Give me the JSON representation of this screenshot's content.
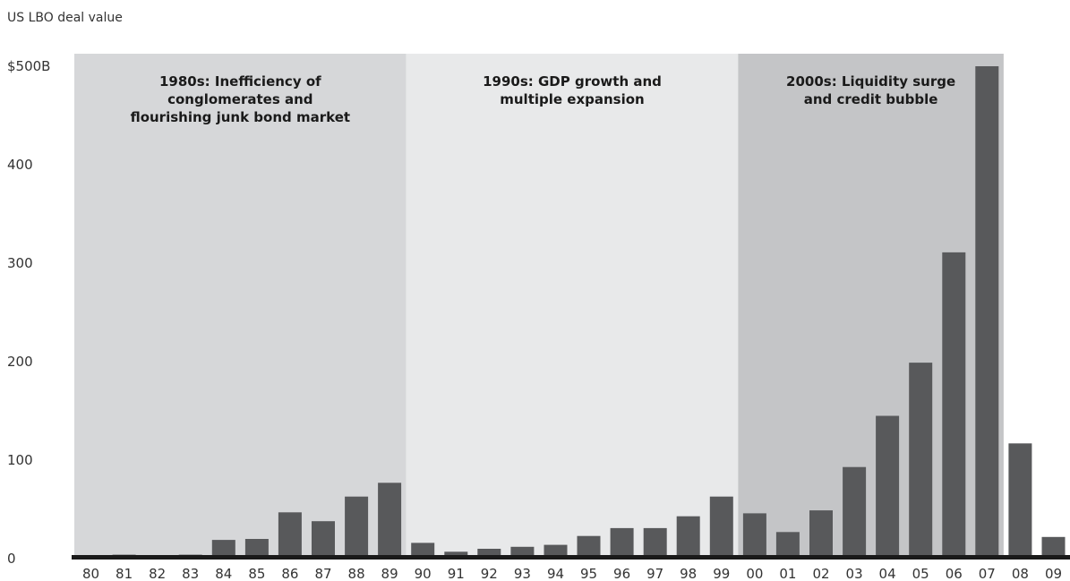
{
  "chart_data": {
    "type": "bar",
    "title": "US LBO deal value",
    "categories": [
      "80",
      "81",
      "82",
      "83",
      "84",
      "85",
      "86",
      "87",
      "88",
      "89",
      "90",
      "91",
      "92",
      "93",
      "94",
      "95",
      "96",
      "97",
      "98",
      "99",
      "00",
      "01",
      "02",
      "03",
      "04",
      "05",
      "06",
      "07",
      "08",
      "09"
    ],
    "values": [
      1,
      4,
      3,
      4,
      19,
      20,
      47,
      38,
      63,
      77,
      16,
      7,
      10,
      12,
      14,
      23,
      31,
      31,
      43,
      63,
      46,
      27,
      49,
      93,
      145,
      199,
      311,
      500,
      117,
      22
    ],
    "y_ticks": [
      {
        "value": 0,
        "label": "0"
      },
      {
        "value": 100,
        "label": "100"
      },
      {
        "value": 200,
        "label": "200"
      },
      {
        "value": 300,
        "label": "300"
      },
      {
        "value": 400,
        "label": "400"
      },
      {
        "value": 500,
        "label": "$500B"
      }
    ],
    "ylim": [
      0,
      500
    ],
    "grid": false,
    "bar_color": "#58595b",
    "eras": [
      {
        "lines": [
          "1980s: Inefficiency of",
          "conglomerates and",
          "flourishing junk bond market"
        ],
        "start": "80",
        "end": "89",
        "color": "#d6d7d9"
      },
      {
        "lines": [
          "1990s: GDP growth and",
          "multiple expansion"
        ],
        "start": "90",
        "end": "99",
        "color": "#e8e9ea"
      },
      {
        "lines": [
          "2000s: Liquidity surge",
          "and credit bubble"
        ],
        "start": "00",
        "end": "07",
        "color": "#c4c5c7"
      }
    ]
  }
}
